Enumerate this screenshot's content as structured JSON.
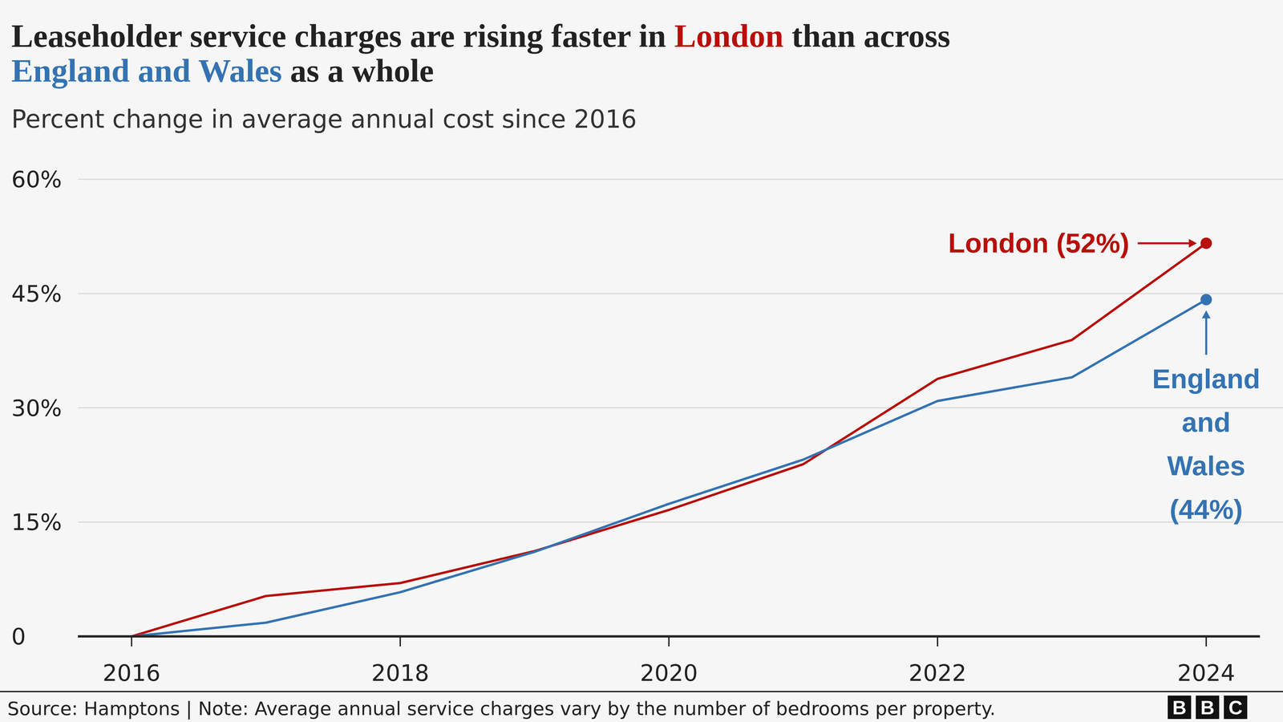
{
  "chart_data": {
    "type": "line",
    "title": "Leaseholder service charges are rising faster in London than across England and Wales as a whole",
    "subtitle": "Percent change in average annual cost since 2016",
    "x": [
      2016,
      2017,
      2018,
      2019,
      2020,
      2021,
      2022,
      2023,
      2024
    ],
    "series": [
      {
        "name": "London",
        "color": "#b80f0a",
        "values": [
          0,
          5.3,
          7.0,
          11.2,
          16.6,
          22.6,
          33.8,
          38.9,
          51.6
        ]
      },
      {
        "name": "England and Wales",
        "color": "#3473b3",
        "values": [
          0,
          1.8,
          5.8,
          11.1,
          17.4,
          23.2,
          30.9,
          34.0,
          44.2
        ]
      }
    ],
    "annotations": [
      {
        "lines": [
          "London (52%)"
        ]
      },
      {
        "lines": [
          "England",
          "and",
          "Wales",
          "(44%)"
        ]
      }
    ],
    "xlim": [
      2015.6,
      2024.4
    ],
    "xticks": [
      2016,
      2018,
      2020,
      2022,
      2024
    ],
    "ylim": [
      0,
      60
    ],
    "yticks": [
      0,
      {
        "value": 15,
        "label": "15%"
      },
      {
        "value": 30,
        "label": "30%"
      },
      {
        "value": 45,
        "label": "45%"
      },
      {
        "value": 60,
        "label": "60%"
      }
    ],
    "grid": true,
    "source": "Source: Hamptons | Note: Average annual service charges vary by the number of bedrooms per property.",
    "logo": [
      "B",
      "B",
      "C"
    ]
  }
}
